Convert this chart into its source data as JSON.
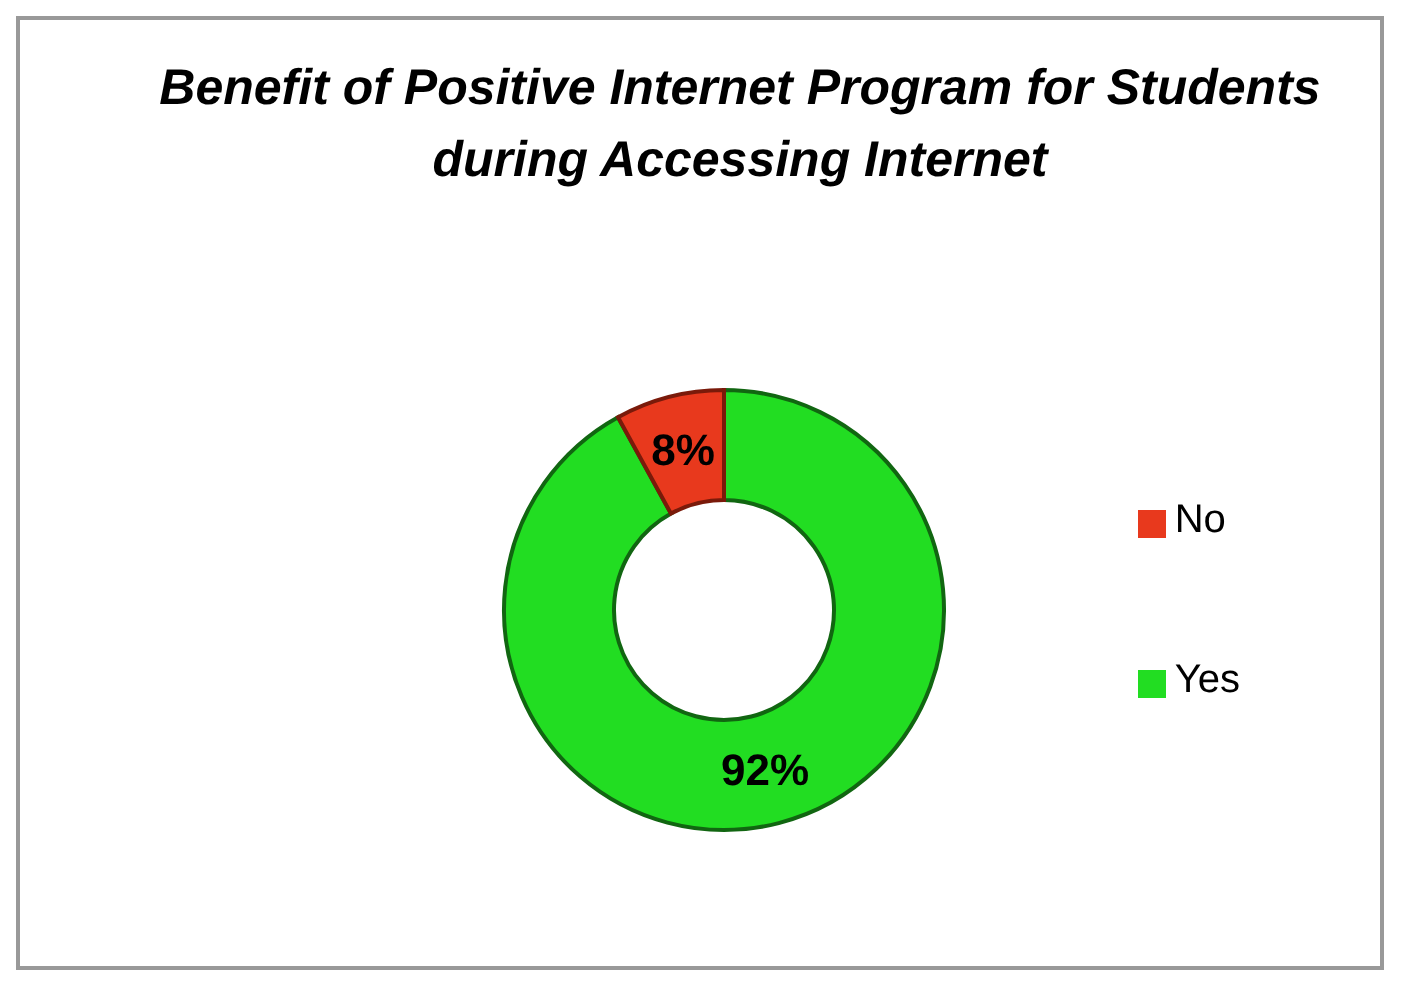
{
  "chart_data": {
    "type": "donut",
    "title": "Benefit of Positive Internet Program for Students during Accessing Internet",
    "categories": [
      "Yes",
      "No"
    ],
    "values": [
      92,
      8
    ],
    "colors": [
      "#22dd22",
      "#e8391d"
    ],
    "value_labels": [
      "92%",
      "8%"
    ],
    "legend": "right"
  }
}
